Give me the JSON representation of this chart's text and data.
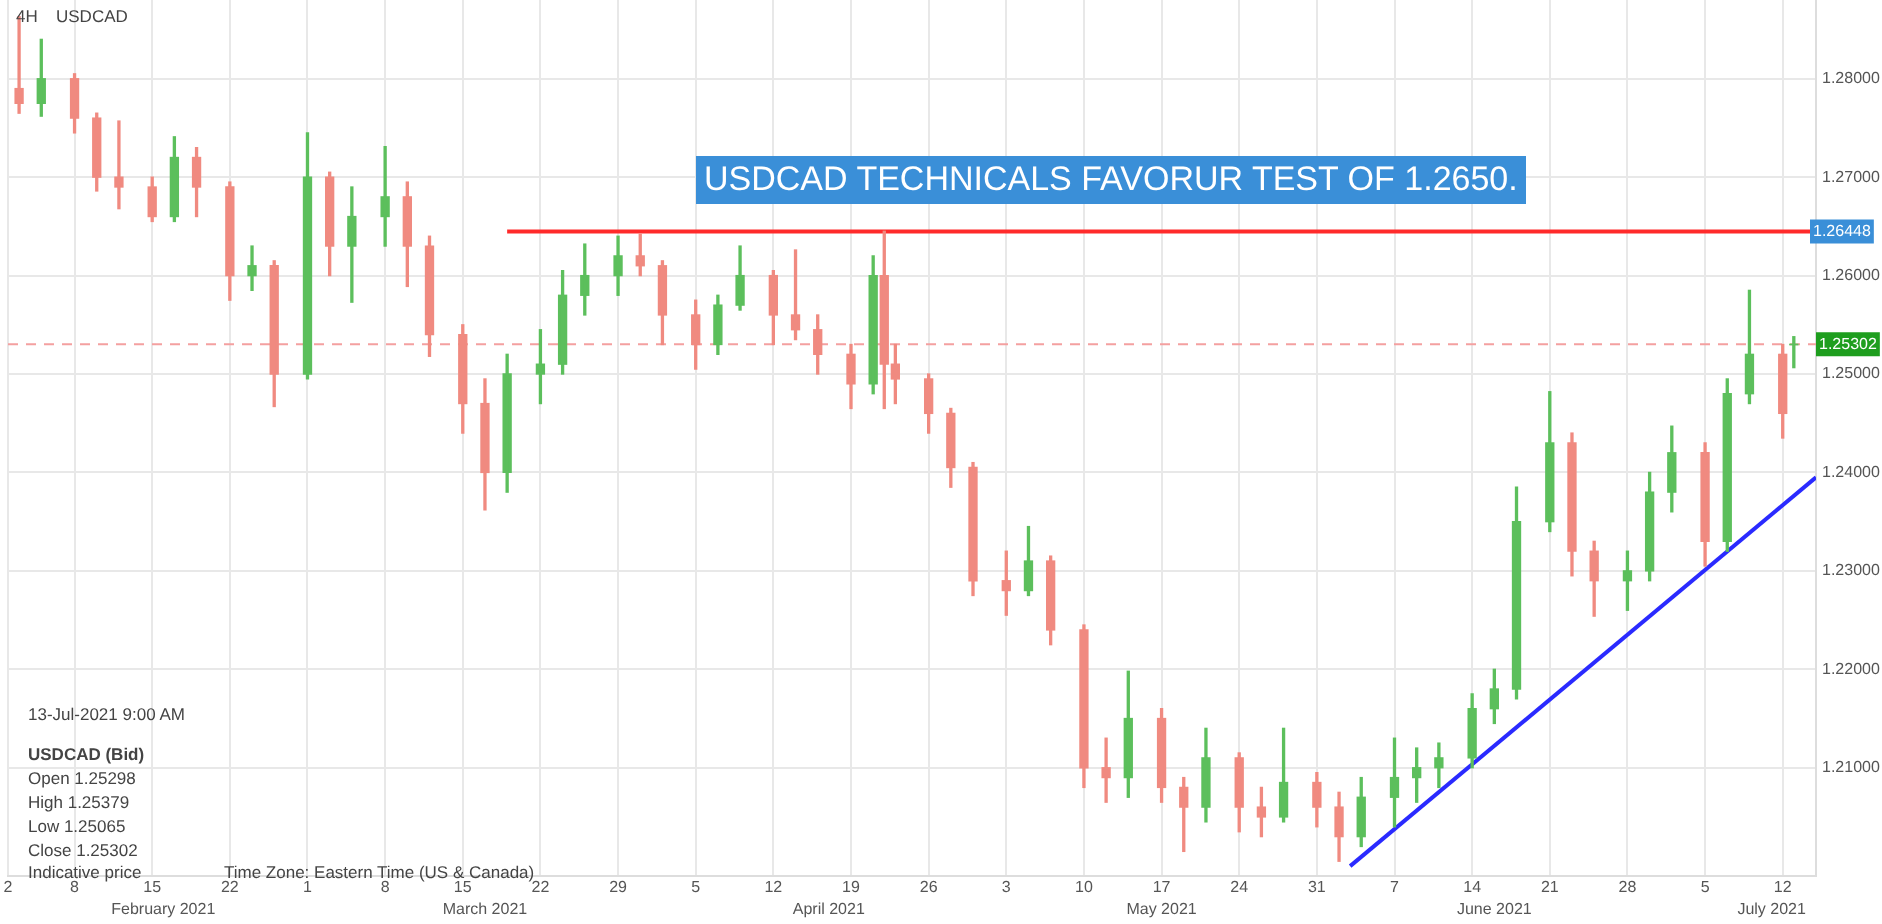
{
  "chart_data": {
    "type": "candlestick",
    "title": "USDCAD",
    "subtitle": "4H",
    "x": [
      "2021-02-03",
      "2021-02-05",
      "2021-02-08",
      "2021-02-10",
      "2021-02-12",
      "2021-02-15",
      "2021-02-17",
      "2021-02-19",
      "2021-02-22",
      "2021-02-24",
      "2021-02-26",
      "2021-03-01",
      "2021-03-03",
      "2021-03-05",
      "2021-03-08",
      "2021-03-10",
      "2021-03-12",
      "2021-03-15",
      "2021-03-17",
      "2021-03-19",
      "2021-03-22",
      "2021-03-24",
      "2021-03-26",
      "2021-03-29",
      "2021-03-31",
      "2021-04-02",
      "2021-04-05",
      "2021-04-07",
      "2021-04-09",
      "2021-04-12",
      "2021-04-14",
      "2021-04-16",
      "2021-04-19",
      "2021-04-21",
      "2021-04-22",
      "2021-04-23",
      "2021-04-26",
      "2021-04-28",
      "2021-04-30",
      "2021-05-03",
      "2021-05-05",
      "2021-05-07",
      "2021-05-10",
      "2021-05-12",
      "2021-05-14",
      "2021-05-17",
      "2021-05-19",
      "2021-05-21",
      "2021-05-24",
      "2021-05-26",
      "2021-05-28",
      "2021-05-31",
      "2021-06-02",
      "2021-06-04",
      "2021-06-07",
      "2021-06-09",
      "2021-06-11",
      "2021-06-14",
      "2021-06-16",
      "2021-06-18",
      "2021-06-21",
      "2021-06-23",
      "2021-06-25",
      "2021-06-28",
      "2021-06-30",
      "2021-07-02",
      "2021-07-05",
      "2021-07-07",
      "2021-07-09",
      "2021-07-12",
      "2021-07-13"
    ],
    "ohlc": [
      [
        1.279,
        1.2863,
        1.2765,
        1.2775
      ],
      [
        1.2775,
        1.284,
        1.2762,
        1.28
      ],
      [
        1.28,
        1.2805,
        1.2745,
        1.276
      ],
      [
        1.276,
        1.2765,
        1.2686,
        1.27
      ],
      [
        1.27,
        1.2757,
        1.2668,
        1.269
      ],
      [
        1.269,
        1.27,
        1.2655,
        1.266
      ],
      [
        1.266,
        1.2741,
        1.2655,
        1.272
      ],
      [
        1.272,
        1.273,
        1.266,
        1.269
      ],
      [
        1.269,
        1.2695,
        1.2575,
        1.26
      ],
      [
        1.26,
        1.263,
        1.2585,
        1.261
      ],
      [
        1.261,
        1.2615,
        1.2467,
        1.25
      ],
      [
        1.25,
        1.2745,
        1.2495,
        1.27
      ],
      [
        1.27,
        1.2705,
        1.26,
        1.263
      ],
      [
        1.263,
        1.269,
        1.2573,
        1.266
      ],
      [
        1.266,
        1.2731,
        1.263,
        1.268
      ],
      [
        1.268,
        1.2695,
        1.2589,
        1.263
      ],
      [
        1.263,
        1.264,
        1.2518,
        1.254
      ],
      [
        1.254,
        1.255,
        1.244,
        1.247
      ],
      [
        1.247,
        1.2495,
        1.2362,
        1.24
      ],
      [
        1.24,
        1.252,
        1.238,
        1.25
      ],
      [
        1.25,
        1.2545,
        1.247,
        1.251
      ],
      [
        1.251,
        1.2605,
        1.25,
        1.258
      ],
      [
        1.258,
        1.2632,
        1.256,
        1.26
      ],
      [
        1.26,
        1.264,
        1.258,
        1.262
      ],
      [
        1.262,
        1.2642,
        1.26,
        1.261
      ],
      [
        1.261,
        1.2615,
        1.253,
        1.256
      ],
      [
        1.256,
        1.2575,
        1.2505,
        1.253
      ],
      [
        1.253,
        1.258,
        1.252,
        1.257
      ],
      [
        1.257,
        1.263,
        1.2565,
        1.26
      ],
      [
        1.26,
        1.2605,
        1.253,
        1.256
      ],
      [
        1.256,
        1.2626,
        1.2535,
        1.2545
      ],
      [
        1.2545,
        1.256,
        1.25,
        1.252
      ],
      [
        1.252,
        1.253,
        1.2465,
        1.249
      ],
      [
        1.249,
        1.262,
        1.248,
        1.26
      ],
      [
        1.26,
        1.2645,
        1.2465,
        1.251
      ],
      [
        1.251,
        1.253,
        1.247,
        1.2495
      ],
      [
        1.2495,
        1.25,
        1.244,
        1.246
      ],
      [
        1.246,
        1.2465,
        1.2385,
        1.2405
      ],
      [
        1.2405,
        1.241,
        1.2275,
        1.229
      ],
      [
        1.229,
        1.232,
        1.2255,
        1.228
      ],
      [
        1.228,
        1.2345,
        1.2275,
        1.231
      ],
      [
        1.231,
        1.2315,
        1.2225,
        1.224
      ],
      [
        1.224,
        1.2245,
        1.208,
        1.21
      ],
      [
        1.21,
        1.213,
        1.2065,
        1.209
      ],
      [
        1.209,
        1.2198,
        1.207,
        1.215
      ],
      [
        1.215,
        1.216,
        1.2065,
        1.208
      ],
      [
        1.208,
        1.209,
        1.2015,
        1.206
      ],
      [
        1.206,
        1.214,
        1.2045,
        1.211
      ],
      [
        1.211,
        1.2115,
        1.2035,
        1.206
      ],
      [
        1.206,
        1.208,
        1.203,
        1.205
      ],
      [
        1.205,
        1.214,
        1.2045,
        1.2085
      ],
      [
        1.2085,
        1.2095,
        1.204,
        1.206
      ],
      [
        1.206,
        1.2075,
        1.2005,
        1.203
      ],
      [
        1.203,
        1.209,
        1.202,
        1.207
      ],
      [
        1.207,
        1.213,
        1.204,
        1.209
      ],
      [
        1.209,
        1.212,
        1.2065,
        1.21
      ],
      [
        1.21,
        1.2125,
        1.208,
        1.211
      ],
      [
        1.211,
        1.2175,
        1.21,
        1.216
      ],
      [
        1.216,
        1.22,
        1.2145,
        1.218
      ],
      [
        1.218,
        1.2385,
        1.217,
        1.235
      ],
      [
        1.235,
        1.2482,
        1.234,
        1.243
      ],
      [
        1.243,
        1.244,
        1.2295,
        1.232
      ],
      [
        1.232,
        1.233,
        1.2254,
        1.229
      ],
      [
        1.229,
        1.232,
        1.226,
        1.23
      ],
      [
        1.23,
        1.24,
        1.229,
        1.238
      ],
      [
        1.238,
        1.2447,
        1.236,
        1.242
      ],
      [
        1.242,
        1.243,
        1.2305,
        1.233
      ],
      [
        1.233,
        1.2495,
        1.232,
        1.248
      ],
      [
        1.248,
        1.2585,
        1.247,
        1.252
      ],
      [
        1.252,
        1.253,
        1.2435,
        1.246
      ],
      [
        1.25298,
        1.25379,
        1.25065,
        1.25302
      ]
    ],
    "series": [
      {
        "type": "line",
        "color": "#ff2a2a",
        "x": [
          "2021-03-19",
          "2021-07-15"
        ],
        "values": [
          1.26448,
          1.26448
        ],
        "value_labels": [
          null,
          "1.26448"
        ]
      },
      {
        "type": "line",
        "color": "#2a2aff",
        "x": [
          "2021-06-03",
          "2021-07-15"
        ],
        "values": [
          1.2,
          1.2395
        ]
      }
    ],
    "ref_lines": [
      {
        "axis": "y",
        "value": 1.25302,
        "label": "1.25302",
        "color": "#f4a0a0",
        "line_style": "dashed"
      }
    ],
    "xlim": [
      "2021-02-02",
      "2021-07-15"
    ],
    "xticks": [
      {
        "value": "2021-02-02",
        "label": "2"
      },
      {
        "value": "2021-02-08",
        "label": "8"
      },
      {
        "value": "2021-02-15",
        "label": "15"
      },
      {
        "value": "2021-02-22",
        "label": "22"
      },
      {
        "value": "2021-03-01",
        "label": "1"
      },
      {
        "value": "2021-03-08",
        "label": "8"
      },
      {
        "value": "2021-03-15",
        "label": "15"
      },
      {
        "value": "2021-03-22",
        "label": "22"
      },
      {
        "value": "2021-03-29",
        "label": "29"
      },
      {
        "value": "2021-04-05",
        "label": "5"
      },
      {
        "value": "2021-04-12",
        "label": "12"
      },
      {
        "value": "2021-04-19",
        "label": "19"
      },
      {
        "value": "2021-04-26",
        "label": "26"
      },
      {
        "value": "2021-05-03",
        "label": "3"
      },
      {
        "value": "2021-05-10",
        "label": "10"
      },
      {
        "value": "2021-05-17",
        "label": "17"
      },
      {
        "value": "2021-05-24",
        "label": "24"
      },
      {
        "value": "2021-05-31",
        "label": "31"
      },
      {
        "value": "2021-06-07",
        "label": "7"
      },
      {
        "value": "2021-06-14",
        "label": "14"
      },
      {
        "value": "2021-06-21",
        "label": "21"
      },
      {
        "value": "2021-06-28",
        "label": "28"
      },
      {
        "value": "2021-07-05",
        "label": "5"
      },
      {
        "value": "2021-07-12",
        "label": "12"
      }
    ],
    "x2lim": [
      "2021-02-02",
      "2021-07-15"
    ],
    "x2ticks": [
      {
        "value": "2021-02-16",
        "label": "February 2021"
      },
      {
        "value": "2021-03-17",
        "label": "March 2021"
      },
      {
        "value": "2021-04-17",
        "label": "April 2021"
      },
      {
        "value": "2021-05-17",
        "label": "May 2021"
      },
      {
        "value": "2021-06-16",
        "label": "June 2021"
      },
      {
        "value": "2021-07-11",
        "label": "July 2021"
      }
    ],
    "ylim": [
      1.199,
      1.288
    ],
    "yticks": [
      {
        "value": 1.21,
        "label": "1.21000"
      },
      {
        "value": 1.22,
        "label": "1.22000"
      },
      {
        "value": 1.23,
        "label": "1.23000"
      },
      {
        "value": 1.24,
        "label": "1.24000"
      },
      {
        "value": 1.25,
        "label": "1.25000"
      },
      {
        "value": 1.26,
        "label": "1.26000"
      },
      {
        "value": 1.27,
        "label": "1.27000"
      },
      {
        "value": 1.28,
        "label": "1.28000"
      }
    ],
    "grid": true,
    "legend": false,
    "annotations": [
      "USDCAD TECHNICALS FAVORUR TEST OF 1.2650.",
      "13-Jul-2021 9:00 AM",
      "USDCAD (Bid)",
      "Open 1.25298",
      "High 1.25379",
      "Low 1.25065",
      "Close 1.25302",
      "Indicative price",
      "Time Zone: Eastern Time (US & Canada)"
    ]
  }
}
